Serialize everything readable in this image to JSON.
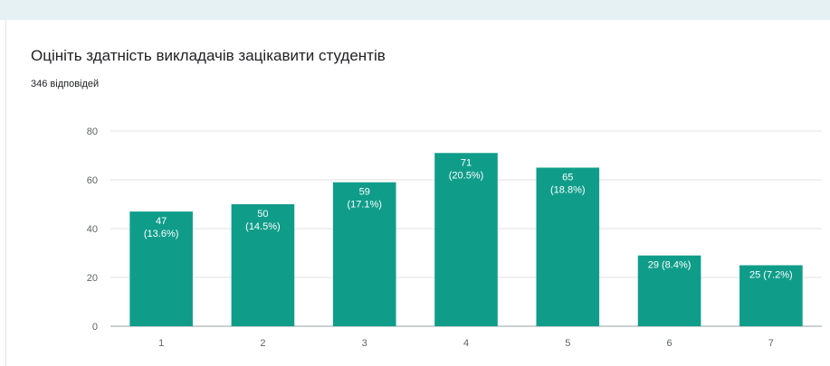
{
  "header": {
    "title": "Оцініть здатність викладачів зацікавити студентів",
    "responses": "346 відповідей"
  },
  "colors": {
    "bar": "#0f9d8a",
    "grid": "#e0e0e0",
    "band": "#e6f1f4"
  },
  "chart_data": {
    "type": "bar",
    "title": "Оцініть здатність викладачів зацікавити студентів",
    "xlabel": "",
    "ylabel": "",
    "categories": [
      "1",
      "2",
      "3",
      "4",
      "5",
      "6",
      "7"
    ],
    "values": [
      47,
      50,
      59,
      71,
      65,
      29,
      25
    ],
    "labels": [
      "47\n(13.6%)",
      "50\n(14.5%)",
      "59\n(17.1%)",
      "71\n(20.5%)",
      "65\n(18.8%)",
      "29 (8.4%)",
      "25 (7.2%)"
    ],
    "ylim": [
      0,
      80
    ],
    "yticks": [
      0,
      20,
      40,
      60,
      80
    ],
    "grid": true,
    "legend": "none"
  }
}
